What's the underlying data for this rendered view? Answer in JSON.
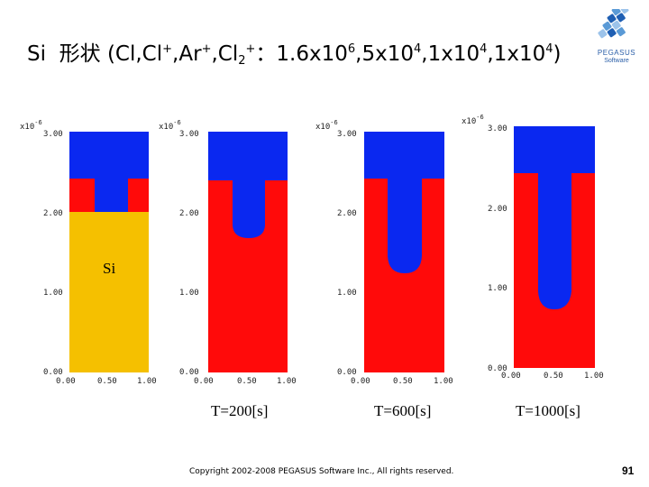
{
  "title": {
    "element": "Si",
    "shape_label": "形状",
    "paren_open": "(",
    "ions": "Cl,Cl",
    "plus1": "+",
    "sep1": ",Ar",
    "plus2": "+",
    "sep2": ",Cl",
    "sub2": "2",
    "plus3": "+",
    "colon": "：",
    "flux1_base": "1.6x10",
    "flux1_exp": "6",
    "flux2_base": ",5x10",
    "flux2_exp": "4",
    "flux3_base": ",1x10",
    "flux3_exp": "4",
    "flux4_base": ",1x10",
    "flux4_exp": "4",
    "paren_close": ")"
  },
  "logo": {
    "name": "PEGASUS",
    "sub": "Software",
    "colors": [
      "#1f5fb3",
      "#5a9ad6",
      "#9cc3ea"
    ]
  },
  "colors": {
    "mask": "#0a28f0",
    "etched_red": "#ff0a0a",
    "silicon": "#f5c000"
  },
  "panels": [
    {
      "exp": "x10",
      "exp_sup": "-6",
      "y_ticks": [
        "3.00",
        "2.00",
        "1.00",
        "0.00"
      ],
      "x_ticks": [
        "0.00",
        "0.50",
        "1.00"
      ]
    },
    {
      "exp": "x10",
      "exp_sup": "-6",
      "y_ticks": [
        "3.00",
        "2.00",
        "1.00",
        "0.00"
      ],
      "x_ticks": [
        "0.00",
        "0.50",
        "1.00"
      ]
    },
    {
      "exp": "x10",
      "exp_sup": "-6",
      "y_ticks": [
        "3.00",
        "2.00",
        "1.00",
        "0.00"
      ],
      "x_ticks": [
        "0.00",
        "0.50",
        "1.00"
      ]
    },
    {
      "exp": "x10",
      "exp_sup": "-6",
      "y_ticks": [
        "3.00",
        "2.00",
        "1.00",
        "0.00"
      ],
      "x_ticks": [
        "0.00",
        "0.50",
        "1.00"
      ]
    }
  ],
  "si_label": "Si",
  "time_labels": [
    "T=200[s]",
    "T=600[s]",
    "T=1000[s]"
  ],
  "copyright": "Copyright 2002-2008 PEGASUS Software Inc., All rights reserved.",
  "page_number": "91"
}
